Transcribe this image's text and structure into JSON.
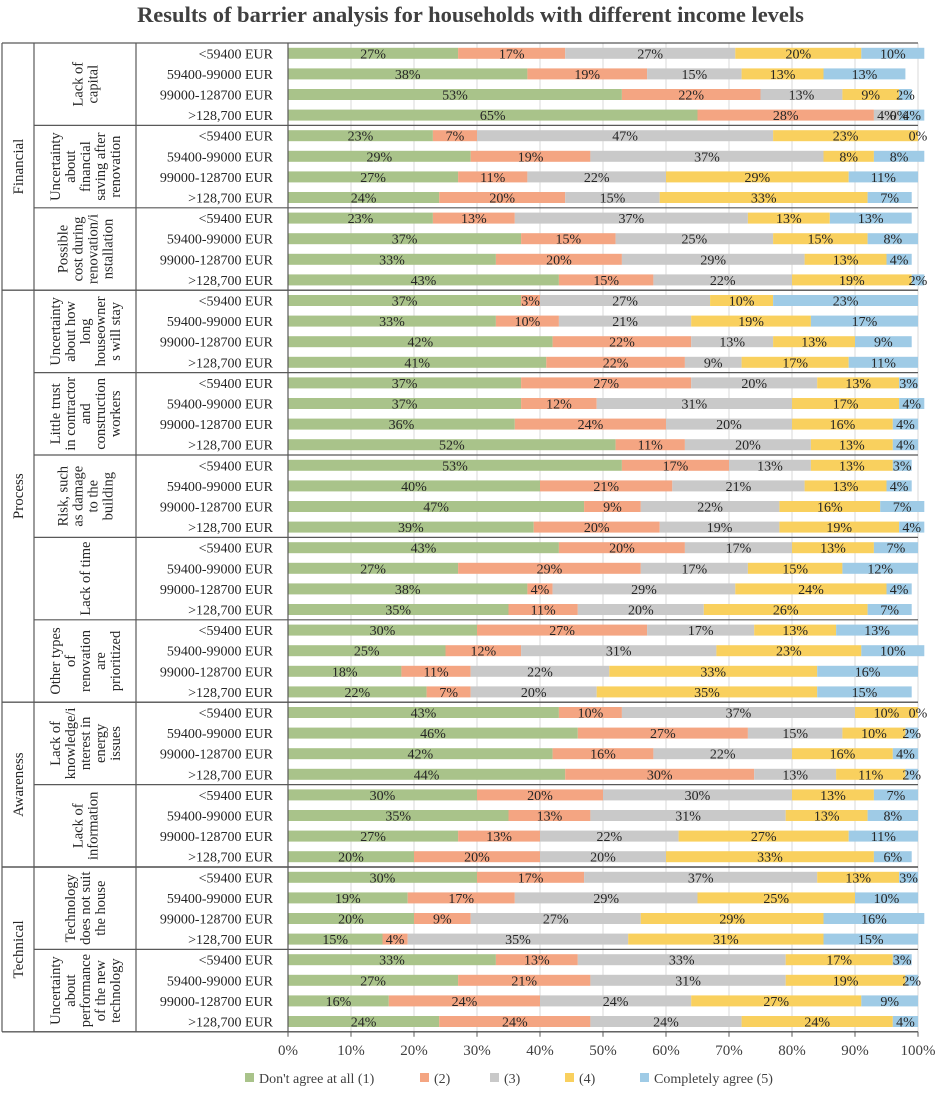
{
  "chart_data": {
    "type": "bar",
    "orientation": "horizontal",
    "stacked": true,
    "title": "Results of barrier analysis for households with different income levels",
    "xlim": [
      0,
      100
    ],
    "x_ticks": [
      "0%",
      "10%",
      "20%",
      "30%",
      "40%",
      "50%",
      "60%",
      "70%",
      "80%",
      "90%",
      "100%"
    ],
    "legend_position": "bottom",
    "series": [
      {
        "name": "Don't agree at all (1)",
        "color": "#a9c38a"
      },
      {
        "name": "(2)",
        "color": "#f4a582"
      },
      {
        "name": "(3)",
        "color": "#c9c9c9"
      },
      {
        "name": "(4)",
        "color": "#f9d05e"
      },
      {
        "name": "Completely agree (5)",
        "color": "#9fcbe6"
      }
    ],
    "categories": [
      {
        "name": "Financial",
        "barriers": [
          {
            "name": "Lack of capital",
            "lines": [
              "Lack of",
              "capital"
            ],
            "rows": [
              {
                "income": "<59400 EUR",
                "values": [
                  27,
                  17,
                  27,
                  20,
                  10
                ]
              },
              {
                "income": "59400-99000 EUR",
                "values": [
                  38,
                  19,
                  15,
                  13,
                  13
                ]
              },
              {
                "income": "99000-128700 EUR",
                "values": [
                  53,
                  22,
                  13,
                  9,
                  2
                ]
              },
              {
                "income": ">128,700 EUR",
                "values": [
                  65,
                  28,
                  4,
                  0,
                  4
                ],
                "labels": [
                  "65%",
                  "28%",
                  "4%",
                  "0%",
                  "4%"
                ]
              }
            ]
          },
          {
            "name": "Uncertainty about financial saving after renovation",
            "lines": [
              "Uncertainty",
              "about",
              "financial",
              "saving after",
              "renovation"
            ],
            "rows": [
              {
                "income": "<59400 EUR",
                "values": [
                  23,
                  7,
                  47,
                  23,
                  0
                ]
              },
              {
                "income": "59400-99000 EUR",
                "values": [
                  29,
                  19,
                  37,
                  8,
                  8
                ]
              },
              {
                "income": "99000-128700 EUR",
                "values": [
                  27,
                  11,
                  22,
                  29,
                  11
                ]
              },
              {
                "income": ">128,700 EUR",
                "values": [
                  24,
                  20,
                  15,
                  33,
                  7
                ]
              }
            ]
          },
          {
            "name": "Possible cost during renovation/installation",
            "lines": [
              "Possible",
              "cost during",
              "renovation/i",
              "nstallation"
            ],
            "rows": [
              {
                "income": "<59400 EUR",
                "values": [
                  23,
                  13,
                  37,
                  13,
                  13
                ]
              },
              {
                "income": "59400-99000 EUR",
                "values": [
                  37,
                  15,
                  25,
                  15,
                  8
                ]
              },
              {
                "income": "99000-128700 EUR",
                "values": [
                  33,
                  20,
                  29,
                  13,
                  4
                ]
              },
              {
                "income": ">128,700 EUR",
                "values": [
                  43,
                  15,
                  22,
                  19,
                  2
                ]
              }
            ]
          }
        ]
      },
      {
        "name": "Process",
        "barriers": [
          {
            "name": "Uncertainty about how long houseowners will stay",
            "lines": [
              "Uncertainty",
              "about how",
              "long",
              "houseowner",
              "s will stay"
            ],
            "rows": [
              {
                "income": "<59400 EUR",
                "values": [
                  37,
                  3,
                  27,
                  10,
                  23
                ]
              },
              {
                "income": "59400-99000 EUR",
                "values": [
                  33,
                  10,
                  21,
                  19,
                  17
                ]
              },
              {
                "income": "99000-128700 EUR",
                "values": [
                  42,
                  22,
                  13,
                  13,
                  9
                ]
              },
              {
                "income": ">128,700 EUR",
                "values": [
                  41,
                  22,
                  9,
                  17,
                  11
                ]
              }
            ]
          },
          {
            "name": "Little trust in contractor and construction workers",
            "lines": [
              "Little trust",
              "in contractor",
              "and",
              "construction",
              "workers"
            ],
            "rows": [
              {
                "income": "<59400 EUR",
                "values": [
                  37,
                  27,
                  20,
                  13,
                  3
                ]
              },
              {
                "income": "59400-99000 EUR",
                "values": [
                  37,
                  12,
                  31,
                  17,
                  4
                ]
              },
              {
                "income": "99000-128700 EUR",
                "values": [
                  36,
                  24,
                  20,
                  16,
                  4
                ]
              },
              {
                "income": ">128,700 EUR",
                "values": [
                  52,
                  11,
                  20,
                  13,
                  4
                ]
              }
            ]
          },
          {
            "name": "Risk, such as damage to the building",
            "lines": [
              "Risk, such",
              "as damage",
              "to the",
              "building"
            ],
            "rows": [
              {
                "income": "<59400 EUR",
                "values": [
                  53,
                  17,
                  13,
                  13,
                  3
                ]
              },
              {
                "income": "59400-99000 EUR",
                "values": [
                  40,
                  21,
                  21,
                  13,
                  4
                ]
              },
              {
                "income": "99000-128700 EUR",
                "values": [
                  47,
                  9,
                  22,
                  16,
                  7
                ]
              },
              {
                "income": ">128,700 EUR",
                "values": [
                  39,
                  20,
                  19,
                  19,
                  4
                ]
              }
            ]
          },
          {
            "name": "Lack of time",
            "lines": [
              "Lack of time"
            ],
            "rows": [
              {
                "income": "<59400 EUR",
                "values": [
                  43,
                  20,
                  17,
                  13,
                  7
                ]
              },
              {
                "income": "59400-99000 EUR",
                "values": [
                  27,
                  29,
                  17,
                  15,
                  12
                ]
              },
              {
                "income": "99000-128700 EUR",
                "values": [
                  38,
                  4,
                  29,
                  24,
                  4
                ]
              },
              {
                "income": ">128,700 EUR",
                "values": [
                  35,
                  11,
                  20,
                  26,
                  7
                ]
              }
            ]
          },
          {
            "name": "Other types of renovation are prioritized",
            "lines": [
              "Other types",
              "of",
              "renovation",
              "are",
              "prioritized"
            ],
            "rows": [
              {
                "income": "<59400 EUR",
                "values": [
                  30,
                  27,
                  17,
                  13,
                  13
                ]
              },
              {
                "income": "59400-99000 EUR",
                "values": [
                  25,
                  12,
                  31,
                  23,
                  10
                ]
              },
              {
                "income": "99000-128700 EUR",
                "values": [
                  18,
                  11,
                  22,
                  33,
                  16
                ]
              },
              {
                "income": ">128,700 EUR",
                "values": [
                  22,
                  7,
                  20,
                  35,
                  15
                ]
              }
            ]
          }
        ]
      },
      {
        "name": "Awareness",
        "barriers": [
          {
            "name": "Lack of knowledge/interest in energy issues",
            "lines": [
              "Lack of",
              "knowledge/i",
              "nterest in",
              "energy",
              "issues"
            ],
            "rows": [
              {
                "income": "<59400 EUR",
                "values": [
                  43,
                  10,
                  37,
                  10,
                  0
                ]
              },
              {
                "income": "59400-99000 EUR",
                "values": [
                  46,
                  27,
                  15,
                  10,
                  2
                ]
              },
              {
                "income": "99000-128700 EUR",
                "values": [
                  42,
                  16,
                  22,
                  16,
                  4
                ]
              },
              {
                "income": ">128,700 EUR",
                "values": [
                  44,
                  30,
                  13,
                  11,
                  2
                ]
              }
            ]
          },
          {
            "name": "Lack of information",
            "lines": [
              "Lack of",
              "information"
            ],
            "rows": [
              {
                "income": "<59400 EUR",
                "values": [
                  30,
                  20,
                  30,
                  13,
                  7
                ]
              },
              {
                "income": "59400-99000 EUR",
                "values": [
                  35,
                  13,
                  31,
                  13,
                  8
                ]
              },
              {
                "income": "99000-128700 EUR",
                "values": [
                  27,
                  13,
                  22,
                  27,
                  11
                ]
              },
              {
                "income": ">128,700 EUR",
                "values": [
                  20,
                  20,
                  20,
                  33,
                  6
                ]
              }
            ]
          }
        ]
      },
      {
        "name": "Technical",
        "barriers": [
          {
            "name": "Technology does not suit the house",
            "lines": [
              "Technology",
              "does not suit",
              "the house"
            ],
            "rows": [
              {
                "income": "<59400 EUR",
                "values": [
                  30,
                  17,
                  37,
                  13,
                  3
                ]
              },
              {
                "income": "59400-99000 EUR",
                "values": [
                  19,
                  17,
                  29,
                  25,
                  10
                ]
              },
              {
                "income": "99000-128700 EUR",
                "values": [
                  20,
                  9,
                  27,
                  29,
                  16
                ]
              },
              {
                "income": ">128,700 EUR",
                "values": [
                  15,
                  4,
                  35,
                  31,
                  15
                ]
              }
            ]
          },
          {
            "name": "Uncertainty about performance of the new technology",
            "lines": [
              "Uncertainty",
              "about",
              "performance",
              "of the new",
              "technology"
            ],
            "rows": [
              {
                "income": "<59400 EUR",
                "values": [
                  33,
                  13,
                  33,
                  17,
                  3
                ]
              },
              {
                "income": "59400-99000 EUR",
                "values": [
                  27,
                  21,
                  31,
                  19,
                  2
                ]
              },
              {
                "income": "99000-128700 EUR",
                "values": [
                  16,
                  24,
                  24,
                  27,
                  9
                ]
              },
              {
                "income": ">128,700 EUR",
                "values": [
                  24,
                  24,
                  24,
                  24,
                  4
                ]
              }
            ]
          }
        ]
      }
    ]
  }
}
